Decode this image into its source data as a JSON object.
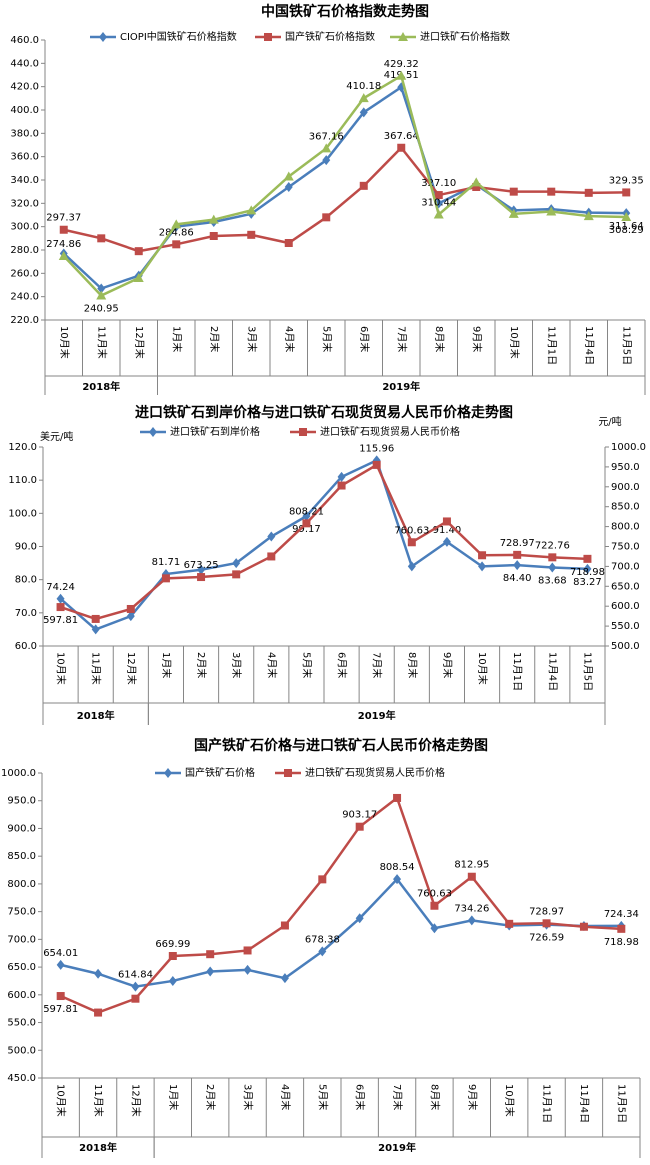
{
  "chart_data": [
    {
      "type": "line",
      "title": "中国铁矿石价格指数走势图",
      "categories": [
        "10月末",
        "11月末",
        "12月末",
        "1月末",
        "2月末",
        "3月末",
        "4月末",
        "5月末",
        "6月末",
        "7月末",
        "8月末",
        "9月末",
        "10月末",
        "11月1日",
        "11月4日",
        "11月5日"
      ],
      "groups": [
        {
          "label": "2018年",
          "span": 3
        },
        {
          "label": "2019年",
          "span": 13
        }
      ],
      "ylim": [
        220,
        460
      ],
      "yticks": [
        {
          "value": 220,
          "label": "220.0"
        },
        {
          "value": 240,
          "label": "240.0"
        },
        {
          "value": 260,
          "label": "260.0"
        },
        {
          "value": 280,
          "label": "280.0"
        },
        {
          "value": 300,
          "label": "300.0"
        },
        {
          "value": 320,
          "label": "320.0"
        },
        {
          "value": 340,
          "label": "340.0"
        },
        {
          "value": 360,
          "label": "360.0"
        },
        {
          "value": 380,
          "label": "380.0"
        },
        {
          "value": 400,
          "label": "400.0"
        },
        {
          "value": 420,
          "label": "420.0"
        },
        {
          "value": 440,
          "label": "440.0"
        },
        {
          "value": 460,
          "label": "460.0"
        }
      ],
      "grid": false,
      "series": [
        {
          "name": "CIOPI中国铁矿石价格指数",
          "color": "#4a7ebb",
          "marker": "diamond",
          "values": [
            277,
            247,
            258,
            300,
            304,
            311,
            334,
            357,
            398,
            419.51,
            320,
            336,
            314,
            315,
            312,
            311.64
          ],
          "value_labels": [
            null,
            null,
            null,
            null,
            null,
            null,
            null,
            null,
            null,
            "419.51",
            null,
            null,
            null,
            null,
            null,
            "311.64"
          ]
        },
        {
          "name": "国产铁矿石价格指数",
          "color": "#be4b48",
          "marker": "square",
          "values": [
            297.37,
            290,
            279,
            284.86,
            292,
            293,
            286,
            308,
            335,
            367.64,
            327.1,
            334,
            330,
            330,
            329,
            329.35
          ],
          "value_labels": [
            "297.37",
            null,
            null,
            "284.86",
            null,
            null,
            null,
            null,
            null,
            "367.64",
            "327.10",
            null,
            null,
            null,
            null,
            "329.35"
          ]
        },
        {
          "name": "进口铁矿石价格指数",
          "color": "#9bbb59",
          "marker": "triangle",
          "values": [
            274.86,
            240.95,
            256,
            302,
            306,
            314,
            343,
            367.16,
            410.18,
            429.32,
            310.44,
            338,
            311,
            313,
            309,
            308.29
          ],
          "value_labels": [
            "274.86",
            "240.95",
            null,
            null,
            null,
            null,
            null,
            "367.16",
            "410.18",
            "429.32",
            "310.44",
            null,
            null,
            null,
            null,
            "308.29"
          ]
        }
      ]
    },
    {
      "type": "line",
      "title": "进口铁矿石到岸价格与进口铁矿石现货贸易人民币价格走势图",
      "categories": [
        "10月末",
        "11月末",
        "12月末",
        "1月末",
        "2月末",
        "3月末",
        "4月末",
        "5月末",
        "6月末",
        "7月末",
        "8月末",
        "9月末",
        "10月末",
        "11月1日",
        "11月4日",
        "11月5日"
      ],
      "groups": [
        {
          "label": "2018年",
          "span": 3
        },
        {
          "label": "2019年",
          "span": 13
        }
      ],
      "ylabel": "美元/吨",
      "y2label": "元/吨",
      "ylim": [
        60,
        120
      ],
      "yticks": [
        {
          "value": 60,
          "label": "60.0"
        },
        {
          "value": 70,
          "label": "70.0"
        },
        {
          "value": 80,
          "label": "80.0"
        },
        {
          "value": 90,
          "label": "90.0"
        },
        {
          "value": 100,
          "label": "100.0"
        },
        {
          "value": 110,
          "label": "110.0"
        },
        {
          "value": 120,
          "label": "120.0"
        }
      ],
      "y2lim": [
        500,
        1000
      ],
      "y2ticks": [
        {
          "value": 500,
          "label": "500.0"
        },
        {
          "value": 550,
          "label": "550.0"
        },
        {
          "value": 600,
          "label": "600.0"
        },
        {
          "value": 650,
          "label": "650.0"
        },
        {
          "value": 700,
          "label": "700.0"
        },
        {
          "value": 750,
          "label": "750.0"
        },
        {
          "value": 800,
          "label": "800.0"
        },
        {
          "value": 850,
          "label": "850.0"
        },
        {
          "value": 900,
          "label": "900.0"
        },
        {
          "value": 950,
          "label": "950.0"
        },
        {
          "value": 1000,
          "label": "1000.0"
        }
      ],
      "grid": false,
      "series": [
        {
          "name": "进口铁矿石到岸价格",
          "color": "#4a7ebb",
          "marker": "diamond",
          "values": [
            74.24,
            65,
            69,
            81.71,
            83,
            85,
            93,
            99.17,
            111,
            115.96,
            84,
            91.4,
            84,
            84.4,
            83.68,
            83.27
          ],
          "value_labels": [
            "74.24",
            null,
            null,
            "81.71",
            null,
            null,
            null,
            "99.17",
            null,
            "115.96",
            null,
            "91.40",
            null,
            "84.40",
            "83.68",
            "83.27"
          ]
        },
        {
          "name": "进口铁矿石现货贸易人民币价格",
          "color": "#be4b48",
          "marker": "square",
          "axis": "y2",
          "values": [
            597.81,
            568,
            593,
            669.99,
            673.25,
            680,
            725,
            808.21,
            903.17,
            955,
            760.63,
            812.95,
            728,
            728.97,
            722.76,
            718.98
          ],
          "value_labels": [
            "597.81",
            null,
            null,
            null,
            "673.25",
            null,
            null,
            "808.21",
            null,
            null,
            "760.63",
            null,
            null,
            "728.97",
            "722.76",
            "718.98"
          ]
        }
      ]
    },
    {
      "type": "line",
      "title": "国产铁矿石价格与进口铁矿石人民币价格走势图",
      "categories": [
        "10月末",
        "11月末",
        "12月末",
        "1月末",
        "2月末",
        "3月末",
        "4月末",
        "5月末",
        "6月末",
        "7月末",
        "8月末",
        "9月末",
        "10月末",
        "11月1日",
        "11月4日",
        "11月5日"
      ],
      "groups": [
        {
          "label": "2018年",
          "span": 3
        },
        {
          "label": "2019年",
          "span": 13
        }
      ],
      "ylim": [
        450,
        1000
      ],
      "yticks": [
        {
          "value": 450,
          "label": "450.0"
        },
        {
          "value": 500,
          "label": "500.0"
        },
        {
          "value": 550,
          "label": "550.0"
        },
        {
          "value": 600,
          "label": "600.0"
        },
        {
          "value": 650,
          "label": "650.0"
        },
        {
          "value": 700,
          "label": "700.0"
        },
        {
          "value": 750,
          "label": "750.0"
        },
        {
          "value": 800,
          "label": "800.0"
        },
        {
          "value": 850,
          "label": "850.0"
        },
        {
          "value": 900,
          "label": "900.0"
        },
        {
          "value": 950,
          "label": "950.0"
        },
        {
          "value": 1000,
          "label": "1000.0"
        }
      ],
      "grid": false,
      "series": [
        {
          "name": "国产铁矿石价格",
          "color": "#4a7ebb",
          "marker": "diamond",
          "values": [
            654.01,
            638,
            614.84,
            625,
            642,
            645,
            630,
            678.38,
            738,
            808.54,
            720,
            734.26,
            725,
            726.59,
            724,
            724.34
          ],
          "value_labels": [
            "654.01",
            null,
            "614.84",
            null,
            null,
            null,
            null,
            "678.38",
            null,
            "808.54",
            null,
            "734.26",
            null,
            "726.59",
            null,
            "724.34"
          ]
        },
        {
          "name": "进口铁矿石现货贸易人民币价格",
          "color": "#be4b48",
          "marker": "square",
          "values": [
            597.81,
            568,
            593,
            669.99,
            673.25,
            680,
            725,
            808.21,
            903.17,
            955,
            760.63,
            812.95,
            728,
            728.97,
            722.76,
            718.98
          ],
          "value_labels": [
            "597.81",
            null,
            null,
            "669.99",
            null,
            null,
            null,
            null,
            "903.17",
            null,
            "760.63",
            "812.95",
            null,
            "728.97",
            null,
            "718.98"
          ]
        }
      ]
    }
  ]
}
